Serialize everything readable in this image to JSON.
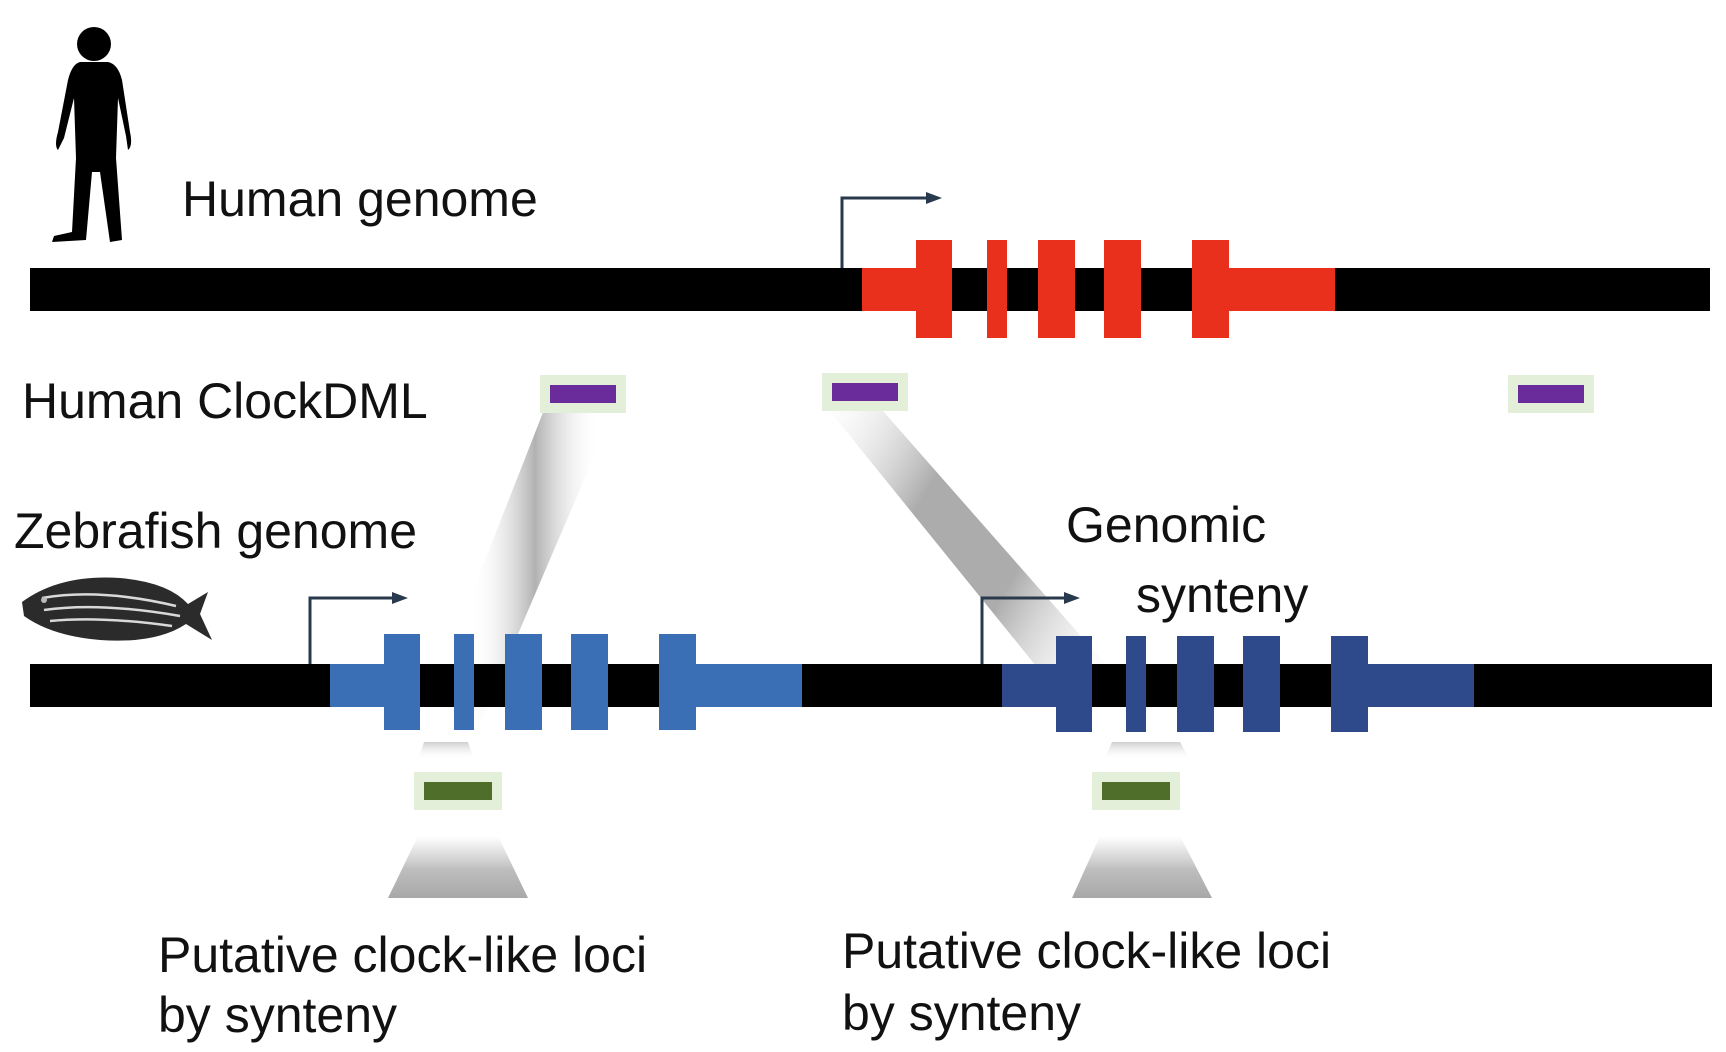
{
  "labels": {
    "human_genome": "Human genome",
    "human_clockdml": "Human ClockDML",
    "zebrafish_genome": "Zebrafish genome",
    "genomic_synteny_line1": "Genomic",
    "genomic_synteny_line2": "synteny",
    "putative_left_line1": "Putative clock-like loci",
    "putative_left_line2": "by synteny",
    "putative_right_line1": "Putative clock-like loci",
    "putative_right_line2": "by synteny"
  },
  "colors": {
    "chromosome": "#000000",
    "human_gene": "#e8301c",
    "zebrafish_gene_1": "#3a6fb5",
    "zebrafish_gene_2": "#2f4a8a",
    "clockdml_marker": "#6a2c9a",
    "clockdml_marker_bg": "#e3efd9",
    "synteny_marker": "#4f6e2a",
    "synteny_marker_bg": "#e3efd9",
    "tss_arrow": "#2a3a4e",
    "projection_shade": "#b5b5b5"
  },
  "icons": {
    "human": "human-silhouette-icon",
    "zebrafish": "zebrafish-icon"
  }
}
